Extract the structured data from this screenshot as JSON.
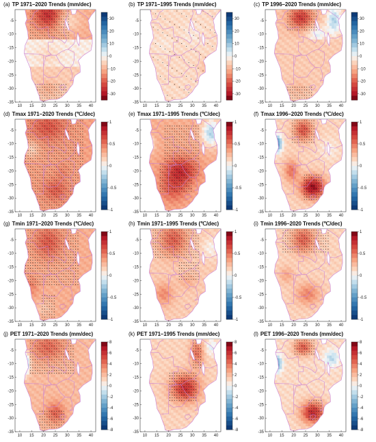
{
  "panels": [
    {
      "label": "(a)",
      "title": "TP 1971–2020 Trends (mm/dec)",
      "variable": "TP",
      "period": "1971–2020",
      "units": "mm/dec",
      "colorbar_ticks": [
        30,
        20,
        10,
        0,
        -10,
        -20,
        -30
      ],
      "colorbar_range": [
        -35,
        35
      ],
      "palette": "precip",
      "pattern": "tp_a",
      "stippling": "north and south"
    },
    {
      "label": "(b)",
      "title": "TP 1971–1995 Trends (mm/dec)",
      "variable": "TP",
      "period": "1971–1995",
      "units": "mm/dec",
      "colorbar_ticks": [
        30,
        20,
        10,
        0,
        -10,
        -20,
        -30
      ],
      "colorbar_range": [
        -35,
        35
      ],
      "palette": "precip",
      "pattern": "tp_b",
      "stippling": "sparse"
    },
    {
      "label": "(c)",
      "title": "TP 1996–2020 Trends (mm/dec)",
      "variable": "TP",
      "period": "1996–2020",
      "units": "mm/dec",
      "colorbar_ticks": [
        30,
        20,
        10,
        0,
        -10,
        -20,
        -30
      ],
      "colorbar_range": [
        -35,
        35
      ],
      "palette": "precip",
      "pattern": "tp_c",
      "stippling": "north and south"
    },
    {
      "label": "(d)",
      "title": "Tmax 1971–2020 Trends (℃/dec)",
      "variable": "Tmax",
      "period": "1971–2020",
      "units": "℃/dec",
      "colorbar_ticks": [
        1,
        0.5,
        0,
        -0.5,
        -1
      ],
      "colorbar_range": [
        -1,
        1
      ],
      "palette": "temp",
      "pattern": "tx_d",
      "stippling": "widespread"
    },
    {
      "label": "(e)",
      "title": "Tmax 1971–1995 Trends (℃/dec)",
      "variable": "Tmax",
      "period": "1971–1995",
      "units": "℃/dec",
      "colorbar_ticks": [
        1,
        0.5,
        0,
        -0.5,
        -1
      ],
      "colorbar_range": [
        -1,
        1
      ],
      "palette": "temp",
      "pattern": "tx_e",
      "stippling": "north and centre"
    },
    {
      "label": "(f)",
      "title": "Tmax 1996–2020 Trends (℃/dec)",
      "variable": "Tmax",
      "period": "1996–2020",
      "units": "℃/dec",
      "colorbar_ticks": [
        1,
        0.5,
        0,
        -0.5,
        -1
      ],
      "colorbar_range": [
        -1,
        1
      ],
      "palette": "temp",
      "pattern": "tx_f",
      "stippling": "north and southeast"
    },
    {
      "label": "(g)",
      "title": "Tmin 1971–2020 Trends (℃/dec)",
      "variable": "Tmin",
      "period": "1971–2020",
      "units": "℃/dec",
      "colorbar_ticks": [
        1,
        0.5,
        0,
        -0.5,
        -1
      ],
      "colorbar_range": [
        -1,
        1
      ],
      "palette": "temp",
      "pattern": "tn_g",
      "stippling": "widespread"
    },
    {
      "label": "(h)",
      "title": "Tmin 1971–1995 Trends (℃/dec)",
      "variable": "Tmin",
      "period": "1971–1995",
      "units": "℃/dec",
      "colorbar_ticks": [
        1,
        0.5,
        0,
        -0.5,
        -1
      ],
      "colorbar_range": [
        -1,
        1
      ],
      "palette": "temp",
      "pattern": "tn_h",
      "stippling": "north"
    },
    {
      "label": "(i)",
      "title": "Tmin 1996–2020 Trends (℃/dec)",
      "variable": "Tmin",
      "period": "1996–2020",
      "units": "℃/dec",
      "colorbar_ticks": [
        1,
        0.5,
        0,
        -0.5,
        -1
      ],
      "colorbar_range": [
        -1,
        1
      ],
      "palette": "temp",
      "pattern": "tn_i",
      "stippling": "north"
    },
    {
      "label": "(j)",
      "title": "PET 1971–2020 Trends (mm/dec)",
      "variable": "PET",
      "period": "1971–2020",
      "units": "mm/dec",
      "colorbar_ticks": [
        8,
        6,
        4,
        2,
        0,
        -2,
        -4,
        -6,
        -8
      ],
      "colorbar_range": [
        -8,
        8
      ],
      "palette": "temp",
      "pattern": "pet_j",
      "stippling": "north and south"
    },
    {
      "label": "(k)",
      "title": "PET 1971–1995 Trends (mm/dec)",
      "variable": "PET",
      "period": "1971–1995",
      "units": "mm/dec",
      "colorbar_ticks": [
        8,
        6,
        4,
        2,
        0,
        -2,
        -4,
        -6,
        -8
      ],
      "colorbar_range": [
        -8,
        8
      ],
      "palette": "temp",
      "pattern": "pet_k",
      "stippling": "centre"
    },
    {
      "label": "(l)",
      "title": "PET 1996–2020 Trends (mm/dec)",
      "variable": "PET",
      "period": "1996–2020",
      "units": "mm/dec",
      "colorbar_ticks": [
        8,
        6,
        4,
        2,
        0,
        -2,
        -4,
        -6,
        -8
      ],
      "colorbar_range": [
        -8,
        8
      ],
      "palette": "temp",
      "pattern": "pet_l",
      "stippling": "north and southeast"
    }
  ],
  "x_ticks": [
    10,
    15,
    20,
    25,
    30,
    35,
    40
  ],
  "y_ticks": [
    -5,
    -10,
    -15,
    -20,
    -25,
    -30,
    -35
  ],
  "lon_range": [
    8,
    42
  ],
  "lat_range": [
    -35,
    -1
  ],
  "colors": {
    "border": "#c97fd6",
    "stipple": "#222222",
    "background": "#ffffff",
    "cb_frame": "#333333"
  }
}
